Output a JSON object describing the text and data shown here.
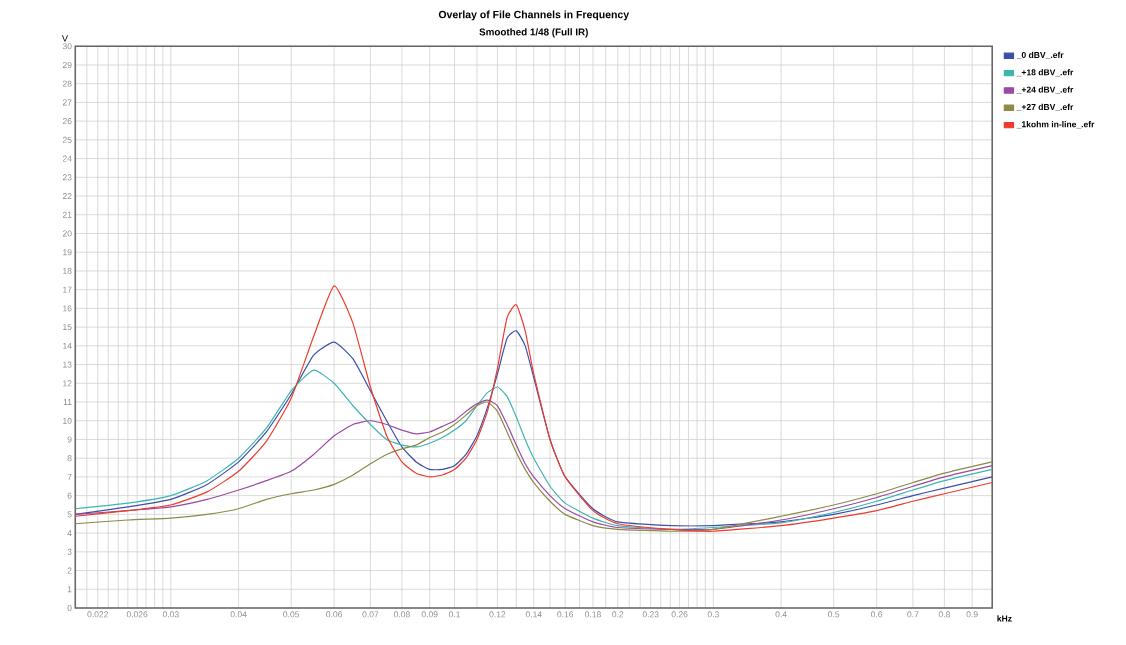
{
  "chart_data": {
    "type": "line",
    "title": "Overlay of File Channels in Frequency",
    "subtitle": "Smoothed 1/48 (Full IR)",
    "xlabel": "kHz",
    "ylabel": "V",
    "log": "x",
    "grid": true,
    "legend": "top right",
    "marker": "none",
    "line_style": "solid",
    "xlim": [
      0.02,
      0.98
    ],
    "ylim": [
      0,
      30
    ],
    "xticks": [
      {
        "value": 0.021,
        "label": null
      },
      {
        "value": 0.022,
        "label": "0.022"
      },
      {
        "value": 0.023,
        "label": null
      },
      {
        "value": 0.024,
        "label": null
      },
      {
        "value": 0.025,
        "label": null
      },
      {
        "value": 0.026,
        "label": "0.026"
      },
      {
        "value": 0.027,
        "label": null
      },
      {
        "value": 0.028,
        "label": null
      },
      {
        "value": 0.029,
        "label": null
      },
      0.03,
      0.04,
      0.05,
      0.06,
      0.07,
      0.08,
      0.09,
      0.1,
      {
        "value": 0.11,
        "label": null
      },
      0.12,
      {
        "value": 0.13,
        "label": null
      },
      0.14,
      {
        "value": 0.15,
        "label": null
      },
      0.16,
      {
        "value": 0.17,
        "label": null
      },
      0.18,
      {
        "value": 0.19,
        "label": null
      },
      0.2,
      {
        "value": 0.21,
        "label": null
      },
      {
        "value": 0.22,
        "label": null
      },
      0.23,
      {
        "value": 0.24,
        "label": null
      },
      {
        "value": 0.25,
        "label": null
      },
      0.26,
      {
        "value": 0.27,
        "label": null
      },
      {
        "value": 0.28,
        "label": null
      },
      {
        "value": 0.29,
        "label": null
      },
      0.3,
      0.4,
      0.5,
      0.6,
      0.7,
      0.8,
      0.9
    ],
    "yticks": [
      0,
      1,
      2,
      3,
      4,
      5,
      6,
      7,
      8,
      9,
      10,
      11,
      12,
      13,
      14,
      15,
      16,
      17,
      18,
      19,
      20,
      21,
      22,
      23,
      24,
      25,
      26,
      27,
      28,
      29,
      30
    ],
    "x": [
      0.02,
      0.025,
      0.03,
      0.035,
      0.04,
      0.045,
      0.05,
      0.055,
      0.06,
      0.065,
      0.07,
      0.075,
      0.08,
      0.085,
      0.09,
      0.095,
      0.1,
      0.105,
      0.11,
      0.115,
      0.12,
      0.125,
      0.13,
      0.135,
      0.14,
      0.15,
      0.16,
      0.18,
      0.2,
      0.25,
      0.3,
      0.4,
      0.5,
      0.6,
      0.7,
      0.8,
      0.98
    ],
    "series": [
      {
        "name": "_0 dBV_.efr",
        "color": "#3c4fa8",
        "values": [
          5.0,
          5.4,
          5.8,
          6.6,
          7.8,
          9.4,
          11.4,
          13.5,
          14.2,
          13.3,
          11.6,
          10.0,
          8.6,
          7.8,
          7.4,
          7.4,
          7.6,
          8.2,
          9.2,
          10.7,
          12.5,
          14.4,
          14.8,
          14.0,
          12.3,
          9.0,
          7.0,
          5.3,
          4.6,
          4.4,
          4.4,
          4.6,
          5.0,
          5.5,
          6.0,
          6.4,
          7.0
        ]
      },
      {
        "name": "_+18 dBV_.efr",
        "color": "#3fb5b0",
        "values": [
          5.3,
          5.6,
          6.0,
          6.8,
          8.0,
          9.6,
          11.6,
          12.7,
          12.0,
          10.8,
          9.8,
          9.0,
          8.7,
          8.6,
          8.8,
          9.1,
          9.5,
          10.0,
          10.8,
          11.5,
          11.8,
          11.3,
          10.2,
          9.0,
          8.0,
          6.5,
          5.6,
          4.8,
          4.4,
          4.2,
          4.3,
          4.55,
          5.1,
          5.7,
          6.3,
          6.8,
          7.4
        ]
      },
      {
        "name": "_+24 dBV_.efr",
        "color": "#9a4aa0",
        "values": [
          5.0,
          5.2,
          5.4,
          5.8,
          6.3,
          6.8,
          7.3,
          8.2,
          9.2,
          9.8,
          10.0,
          9.8,
          9.5,
          9.3,
          9.4,
          9.7,
          10.0,
          10.5,
          10.9,
          11.1,
          10.8,
          9.8,
          8.7,
          7.7,
          7.0,
          6.0,
          5.3,
          4.6,
          4.3,
          4.2,
          4.2,
          4.7,
          5.3,
          5.9,
          6.5,
          7.0,
          7.6
        ]
      },
      {
        "name": "_+27 dBV_.efr",
        "color": "#8c8a45",
        "values": [
          4.5,
          4.7,
          4.8,
          5.0,
          5.3,
          5.8,
          6.1,
          6.3,
          6.6,
          7.1,
          7.7,
          8.2,
          8.5,
          8.7,
          9.1,
          9.4,
          9.8,
          10.3,
          10.8,
          11.0,
          10.5,
          9.4,
          8.3,
          7.4,
          6.7,
          5.7,
          5.0,
          4.4,
          4.2,
          4.1,
          4.2,
          4.9,
          5.5,
          6.1,
          6.7,
          7.2,
          7.8
        ]
      },
      {
        "name": "_1kohm in-line_.efr",
        "color": "#ee3b2b",
        "values": [
          4.9,
          5.2,
          5.5,
          6.2,
          7.3,
          8.9,
          11.2,
          14.5,
          17.2,
          15.2,
          11.8,
          9.2,
          7.8,
          7.2,
          7.0,
          7.1,
          7.4,
          8.0,
          9.0,
          10.5,
          12.8,
          15.5,
          16.2,
          14.8,
          12.5,
          9.0,
          7.0,
          5.2,
          4.5,
          4.2,
          4.1,
          4.4,
          4.8,
          5.2,
          5.7,
          6.1,
          6.7
        ]
      }
    ]
  }
}
